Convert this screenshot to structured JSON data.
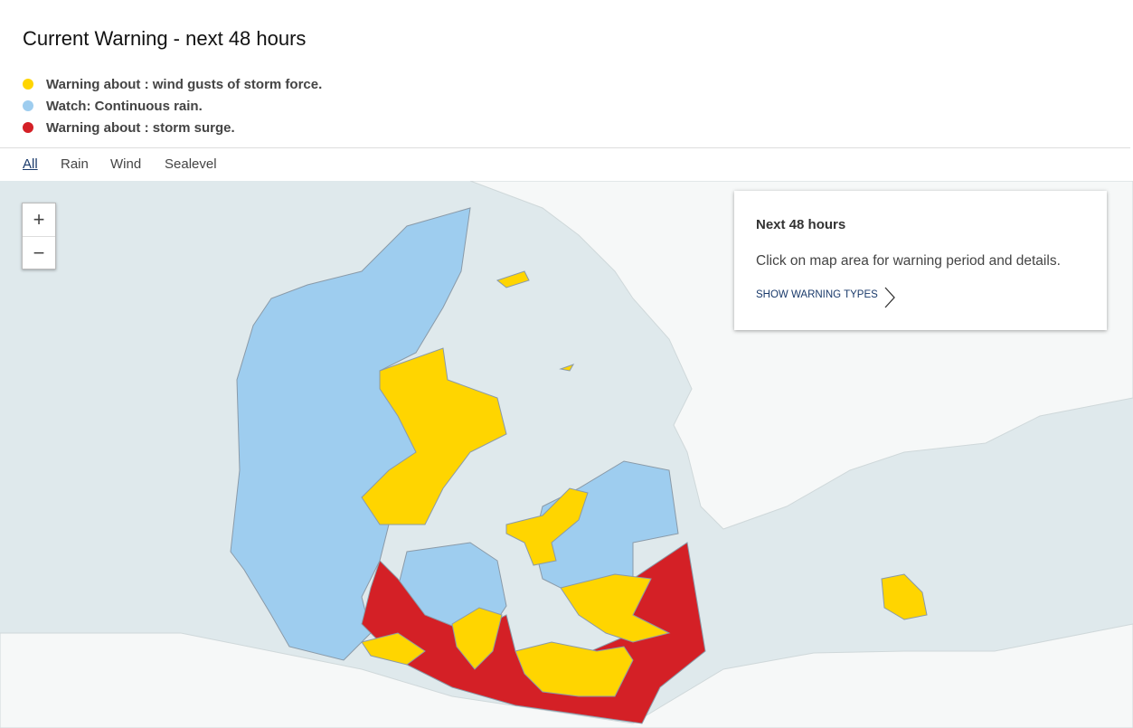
{
  "header": {
    "title": "Current Warning - next 48 hours"
  },
  "legend": [
    {
      "text": "Warning about : wind gusts of storm force."
    },
    {
      "text": "Watch: Continuous rain."
    },
    {
      "text": "Warning about : storm surge."
    }
  ],
  "tabs": [
    "All",
    "Rain",
    "Wind",
    "Sealevel"
  ],
  "zoom": {
    "in": "+",
    "out": "−"
  },
  "info_box": {
    "title": "Next 48 hours",
    "text": "Click on map area for warning period and details.",
    "link": "SHOW WARNING TYPES"
  }
}
